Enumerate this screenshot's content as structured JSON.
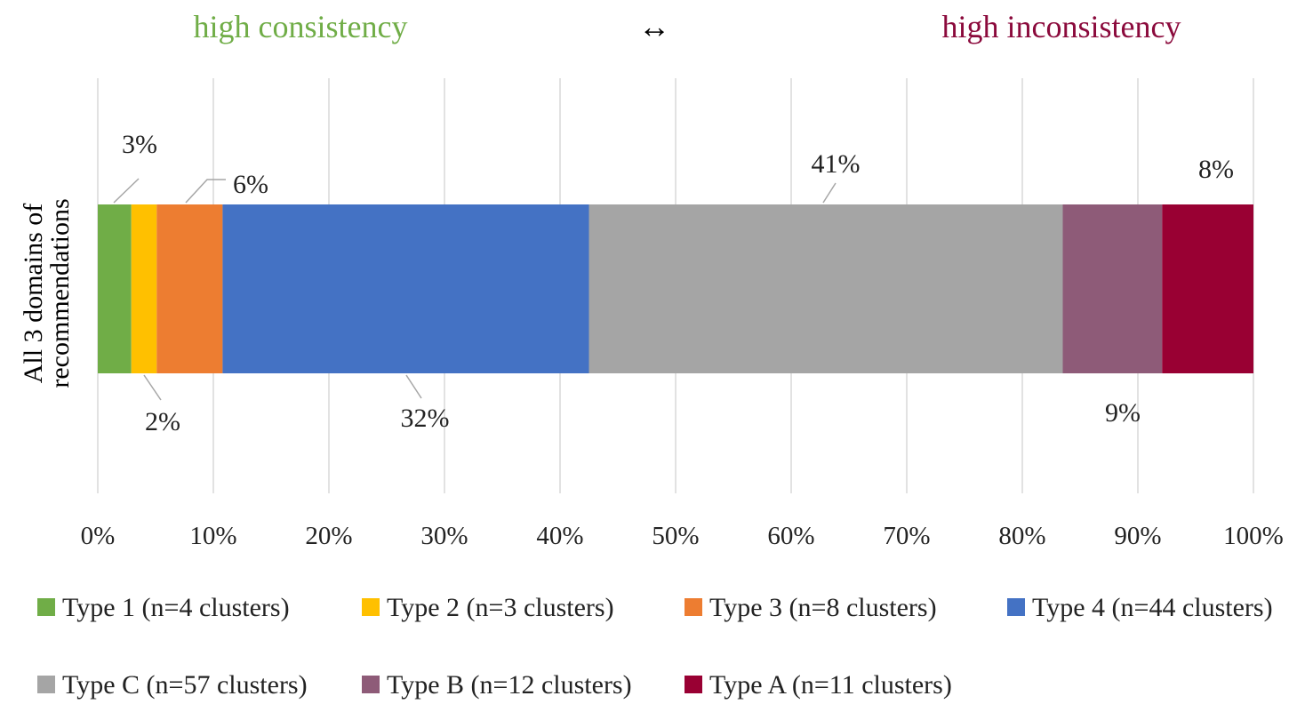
{
  "header": {
    "left_text": "high  consistency",
    "left_color": "#70ad47",
    "arrow": "↔",
    "right_text": "high  inconsistency",
    "right_color": "#8b0a3c"
  },
  "chart_data": {
    "type": "bar",
    "orientation": "horizontal",
    "stacked": true,
    "categories": [
      "All 3 domains of recommendations"
    ],
    "category_label_lines": [
      "All 3 domains of",
      "recommendations"
    ],
    "xlim": [
      0,
      100
    ],
    "x_ticks": [
      "0%",
      "10%",
      "20%",
      "30%",
      "40%",
      "50%",
      "60%",
      "70%",
      "80%",
      "90%",
      "100%"
    ],
    "grid": true,
    "legend_position": "bottom",
    "series": [
      {
        "name": "Type 1 (n=4 clusters)",
        "value": 2.9,
        "label": "3%",
        "color": "#70ad47"
      },
      {
        "name": "Type 2 (n=3 clusters)",
        "value": 2.2,
        "label": "2%",
        "color": "#ffc000"
      },
      {
        "name": "Type 3 (n=8 clusters)",
        "value": 5.7,
        "label": "6%",
        "color": "#ed7d31"
      },
      {
        "name": "Type 4 (n=44 clusters)",
        "value": 31.7,
        "label": "32%",
        "color": "#4472c4"
      },
      {
        "name": "Type C (n=57 clusters)",
        "value": 41.0,
        "label": "41%",
        "color": "#a5a5a5"
      },
      {
        "name": "Type B (n=12 clusters)",
        "value": 8.6,
        "label": "9%",
        "color": "#8e5b78"
      },
      {
        "name": "Type A (n=11 clusters)",
        "value": 7.9,
        "label": "8%",
        "color": "#990033"
      }
    ]
  }
}
